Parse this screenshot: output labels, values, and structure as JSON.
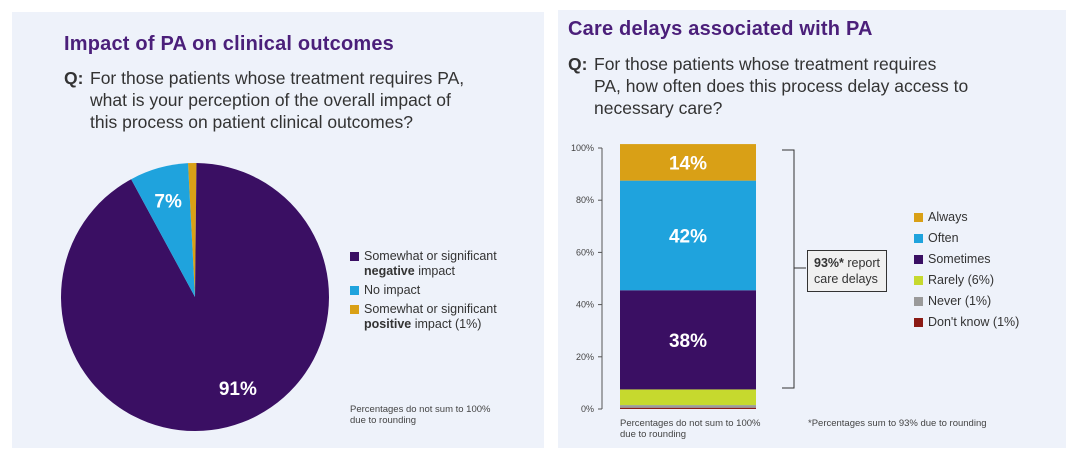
{
  "left": {
    "title": "Impact of PA on clinical outcomes",
    "q_label": "Q:",
    "question_lines": [
      "For those patients whose treatment requires PA,",
      "what is your perception of the overall impact of",
      "this process on patient clinical outcomes?"
    ],
    "legend": [
      {
        "pre": "Somewhat or significant",
        "bold": "negative",
        "post": " impact",
        "color": "#3a0f63"
      },
      {
        "pre": "No impact",
        "bold": "",
        "post": "",
        "color": "#1fa3dd"
      },
      {
        "pre": "Somewhat or significant",
        "bold": "positive",
        "post": " impact (1%)",
        "color": "#d9a016"
      }
    ],
    "note_lines": [
      "Percentages do not sum to 100%",
      "due to rounding"
    ]
  },
  "right": {
    "title": "Care delays associated with PA",
    "q_label": "Q:",
    "question_lines": [
      "For those patients whose treatment requires",
      "PA, how often does this process delay access to",
      "necessary care?"
    ],
    "callout_bold": "93%*",
    "callout_rest": " report",
    "callout_line2": "care delays",
    "note_left_lines": [
      "Percentages do not sum to 100%",
      "due to rounding"
    ],
    "note_right": "*Percentages sum to 93% due to rounding"
  },
  "chart_data": [
    {
      "type": "pie",
      "title": "Impact of PA on clinical outcomes",
      "labels": [
        "Somewhat or significant negative impact",
        "No impact",
        "Somewhat or significant positive impact"
      ],
      "values": [
        91,
        7,
        1
      ],
      "value_labels": [
        "91%",
        "7%",
        ""
      ],
      "colors": [
        "#3a0f63",
        "#1fa3dd",
        "#d9a016"
      ]
    },
    {
      "type": "bar",
      "title": "Care delays associated with PA",
      "stacked": true,
      "categories": [
        "Don't know (1%)",
        "Never (1%)",
        "Rarely (6%)",
        "Sometimes",
        "Often",
        "Always"
      ],
      "legend_order": [
        "Always",
        "Often",
        "Sometimes",
        "Rarely (6%)",
        "Never (1%)",
        "Don't know (1%)"
      ],
      "values": [
        0.5,
        1,
        6,
        38,
        42,
        14
      ],
      "value_labels": [
        "",
        "",
        "",
        "38%",
        "42%",
        "14%"
      ],
      "colors": [
        "#8b1a14",
        "#9a9a9a",
        "#c6d92e",
        "#3a0f63",
        "#1fa3dd",
        "#d9a016"
      ],
      "yticks": [
        "0%",
        "20%",
        "40%",
        "60%",
        "80%",
        "100%"
      ],
      "ylim": [
        0,
        100
      ]
    }
  ]
}
